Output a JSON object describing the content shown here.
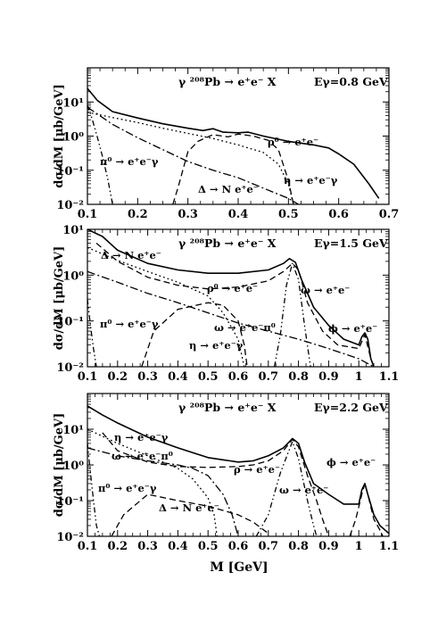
{
  "figure": {
    "xlabel": "M [GeV]"
  },
  "chart_data": [
    {
      "type": "line",
      "title": "γ ²⁰⁸Pb → e⁺e⁻ X",
      "energy_label": "Eγ=0.8 GeV",
      "xlabel": "",
      "ylabel": "dσ/dM [μb/GeV]",
      "xlim": [
        0.1,
        0.7
      ],
      "ylim": [
        0.01,
        100
      ],
      "yscale": "log",
      "xticks": [
        0.1,
        0.2,
        0.3,
        0.4,
        0.5,
        0.6,
        0.7
      ],
      "xtick_labels": [
        "0.1",
        "0.2",
        "0.3",
        "0.4",
        "0.5",
        "0.6",
        "0.7"
      ],
      "yticks": [
        0.01,
        0.1,
        1,
        10
      ],
      "ytick_labels": [
        "10⁻²",
        "10⁻¹",
        "10⁰",
        "10¹"
      ],
      "series": [
        {
          "style": "solid",
          "points": [
            [
              0.1,
              25
            ],
            [
              0.12,
              11
            ],
            [
              0.15,
              5.2
            ],
            [
              0.2,
              3.4
            ],
            [
              0.25,
              2.3
            ],
            [
              0.3,
              1.7
            ],
            [
              0.33,
              1.45
            ],
            [
              0.35,
              1.65
            ],
            [
              0.37,
              1.3
            ],
            [
              0.4,
              1.25
            ],
            [
              0.42,
              1.3
            ],
            [
              0.45,
              1.0
            ],
            [
              0.5,
              0.7
            ],
            [
              0.55,
              0.55
            ],
            [
              0.58,
              0.45
            ],
            [
              0.6,
              0.3
            ],
            [
              0.63,
              0.15
            ],
            [
              0.66,
              0.04
            ],
            [
              0.68,
              0.015
            ]
          ]
        },
        {
          "style": "dash",
          "points": [
            [
              0.27,
              0.01
            ],
            [
              0.28,
              0.03
            ],
            [
              0.3,
              0.35
            ],
            [
              0.32,
              0.7
            ],
            [
              0.35,
              1.1
            ],
            [
              0.38,
              0.95
            ],
            [
              0.4,
              1.15
            ],
            [
              0.43,
              1.0
            ],
            [
              0.46,
              0.75
            ],
            [
              0.48,
              0.4
            ],
            [
              0.5,
              0.05
            ],
            [
              0.51,
              0.01
            ]
          ]
        },
        {
          "style": "dot",
          "points": [
            [
              0.1,
              5
            ],
            [
              0.15,
              3.5
            ],
            [
              0.2,
              2.5
            ],
            [
              0.25,
              1.7
            ],
            [
              0.3,
              1.2
            ],
            [
              0.35,
              0.85
            ],
            [
              0.4,
              0.55
            ],
            [
              0.45,
              0.33
            ],
            [
              0.48,
              0.15
            ],
            [
              0.5,
              0.04
            ],
            [
              0.51,
              0.01
            ]
          ]
        },
        {
          "style": "dashdot",
          "points": [
            [
              0.1,
              7
            ],
            [
              0.15,
              2.2
            ],
            [
              0.2,
              0.9
            ],
            [
              0.25,
              0.4
            ],
            [
              0.3,
              0.18
            ],
            [
              0.35,
              0.1
            ],
            [
              0.4,
              0.06
            ],
            [
              0.45,
              0.03
            ],
            [
              0.5,
              0.015
            ],
            [
              0.52,
              0.01
            ]
          ]
        },
        {
          "style": "dashdotdot",
          "points": [
            [
              0.1,
              8
            ],
            [
              0.11,
              3
            ],
            [
              0.12,
              0.9
            ],
            [
              0.13,
              0.25
            ],
            [
              0.14,
              0.06
            ],
            [
              0.15,
              0.01
            ]
          ]
        }
      ],
      "annotations": [
        "ρ⁰ → e⁺e⁻",
        "π⁰ → e⁺e⁻γ",
        "η → e⁺e⁻γ",
        "Δ → N e⁺e⁻"
      ]
    },
    {
      "type": "line",
      "title": "γ ²⁰⁸Pb → e⁺e⁻ X",
      "energy_label": "Eγ=1.5 GeV",
      "xlabel": "",
      "ylabel": "dσ/dM [μb/GeV]",
      "xlim": [
        0.1,
        1.1
      ],
      "ylim": [
        0.01,
        10
      ],
      "yscale": "log",
      "xticks": [
        0.1,
        0.2,
        0.3,
        0.4,
        0.5,
        0.6,
        0.7,
        0.8,
        0.9,
        1.0,
        1.1
      ],
      "xtick_labels": [
        "0.1",
        "0.2",
        "0.3",
        "0.4",
        "0.5",
        "0.6",
        "0.7",
        "0.8",
        "0.9",
        "1",
        "1.1"
      ],
      "yticks": [
        0.01,
        0.1,
        1,
        10
      ],
      "ytick_labels": [
        "10⁻²",
        "10⁻¹",
        "10⁰",
        "10¹"
      ],
      "series": [
        {
          "style": "solid",
          "points": [
            [
              0.1,
              10
            ],
            [
              0.15,
              7
            ],
            [
              0.2,
              3.5
            ],
            [
              0.3,
              1.8
            ],
            [
              0.4,
              1.3
            ],
            [
              0.5,
              1.1
            ],
            [
              0.6,
              1.1
            ],
            [
              0.7,
              1.3
            ],
            [
              0.75,
              1.8
            ],
            [
              0.77,
              2.3
            ],
            [
              0.79,
              1.9
            ],
            [
              0.81,
              0.8
            ],
            [
              0.85,
              0.2
            ],
            [
              0.9,
              0.08
            ],
            [
              0.95,
              0.04
            ],
            [
              1.0,
              0.03
            ],
            [
              1.01,
              0.045
            ],
            [
              1.02,
              0.055
            ],
            [
              1.03,
              0.04
            ],
            [
              1.04,
              0.015
            ],
            [
              1.05,
              0.01
            ]
          ]
        },
        {
          "style": "dash",
          "points": [
            [
              0.13,
              5
            ],
            [
              0.2,
              2
            ],
            [
              0.3,
              0.9
            ],
            [
              0.4,
              0.6
            ],
            [
              0.5,
              0.5
            ],
            [
              0.6,
              0.55
            ],
            [
              0.7,
              0.75
            ],
            [
              0.75,
              1.2
            ],
            [
              0.78,
              1.8
            ],
            [
              0.8,
              1.3
            ],
            [
              0.83,
              0.25
            ],
            [
              0.88,
              0.06
            ],
            [
              0.93,
              0.03
            ],
            [
              1.0,
              0.025
            ],
            [
              1.02,
              0.05
            ],
            [
              1.04,
              0.015
            ],
            [
              1.05,
              0.01
            ]
          ]
        },
        {
          "style": "dot",
          "points": [
            [
              0.1,
              4
            ],
            [
              0.2,
              2.1
            ],
            [
              0.3,
              1.2
            ],
            [
              0.4,
              0.7
            ],
            [
              0.5,
              0.35
            ],
            [
              0.55,
              0.15
            ],
            [
              0.6,
              0.04
            ],
            [
              0.62,
              0.01
            ]
          ]
        },
        {
          "style": "dashdot",
          "points": [
            [
              0.1,
              1.2
            ],
            [
              0.2,
              0.7
            ],
            [
              0.3,
              0.4
            ],
            [
              0.4,
              0.25
            ],
            [
              0.5,
              0.15
            ],
            [
              0.6,
              0.09
            ],
            [
              0.7,
              0.06
            ],
            [
              0.8,
              0.04
            ],
            [
              0.9,
              0.025
            ],
            [
              1.0,
              0.015
            ],
            [
              1.05,
              0.01
            ]
          ]
        },
        {
          "style": "dashdotdot",
          "points": [
            [
              0.1,
              0.3
            ],
            [
              0.11,
              0.08
            ],
            [
              0.12,
              0.025
            ],
            [
              0.13,
              0.01
            ]
          ]
        },
        {
          "style": "dashdotdot",
          "points": [
            [
              0.72,
              0.01
            ],
            [
              0.74,
              0.05
            ],
            [
              0.76,
              0.6
            ],
            [
              0.78,
              1.8
            ],
            [
              0.8,
              0.8
            ],
            [
              0.82,
              0.08
            ],
            [
              0.84,
              0.01
            ]
          ]
        },
        {
          "style": "dash",
          "points": [
            [
              0.28,
              0.01
            ],
            [
              0.32,
              0.06
            ],
            [
              0.4,
              0.18
            ],
            [
              0.5,
              0.25
            ],
            [
              0.55,
              0.22
            ],
            [
              0.6,
              0.1
            ],
            [
              0.62,
              0.03
            ],
            [
              0.63,
              0.01
            ]
          ]
        }
      ],
      "annotations": [
        "Δ → N e⁺e⁻",
        "ρ⁰ → e⁺e⁻",
        "ω → e⁺e⁻",
        "π⁰ → e⁺e⁻γ",
        "ω → e⁺e⁻π⁰",
        "η → e⁺e⁻γ",
        "ϕ → e⁺e⁻"
      ]
    },
    {
      "type": "line",
      "title": "γ ²⁰⁸Pb → e⁺e⁻ X",
      "energy_label": "Eγ=2.2 GeV",
      "xlabel": "M [GeV]",
      "ylabel": "dσ/dM [μb/GeV]",
      "xlim": [
        0.1,
        1.1
      ],
      "ylim": [
        0.01,
        100
      ],
      "yscale": "log",
      "xticks": [
        0.1,
        0.2,
        0.3,
        0.4,
        0.5,
        0.6,
        0.7,
        0.8,
        0.9,
        1.0,
        1.1
      ],
      "xtick_labels": [
        "0.1",
        "0.2",
        "0.3",
        "0.4",
        "0.5",
        "0.6",
        "0.7",
        "0.8",
        "0.9",
        "1",
        "1.1"
      ],
      "yticks": [
        0.01,
        0.1,
        1,
        10
      ],
      "ytick_labels": [
        "10⁻²",
        "10⁻¹",
        "10⁰",
        "10¹"
      ],
      "series": [
        {
          "style": "solid",
          "points": [
            [
              0.1,
              45
            ],
            [
              0.15,
              25
            ],
            [
              0.2,
              15
            ],
            [
              0.3,
              6
            ],
            [
              0.4,
              3
            ],
            [
              0.5,
              1.6
            ],
            [
              0.6,
              1.2
            ],
            [
              0.65,
              1.3
            ],
            [
              0.7,
              1.8
            ],
            [
              0.75,
              3
            ],
            [
              0.78,
              5.5
            ],
            [
              0.8,
              4
            ],
            [
              0.82,
              1.2
            ],
            [
              0.85,
              0.3
            ],
            [
              0.9,
              0.15
            ],
            [
              0.95,
              0.08
            ],
            [
              1.0,
              0.08
            ],
            [
              1.01,
              0.2
            ],
            [
              1.02,
              0.3
            ],
            [
              1.03,
              0.15
            ],
            [
              1.05,
              0.04
            ],
            [
              1.07,
              0.02
            ],
            [
              1.1,
              0.012
            ]
          ]
        },
        {
          "style": "dash",
          "points": [
            [
              0.15,
              8
            ],
            [
              0.2,
              2.5
            ],
            [
              0.3,
              1.2
            ],
            [
              0.4,
              0.9
            ],
            [
              0.5,
              0.85
            ],
            [
              0.6,
              0.9
            ],
            [
              0.65,
              1.0
            ],
            [
              0.7,
              1.3
            ],
            [
              0.75,
              2.5
            ],
            [
              0.78,
              5.2
            ],
            [
              0.8,
              3.2
            ],
            [
              0.83,
              0.5
            ],
            [
              0.86,
              0.1
            ],
            [
              0.88,
              0.03
            ],
            [
              0.9,
              0.01
            ]
          ]
        },
        {
          "style": "dash",
          "points": [
            [
              0.97,
              0.01
            ],
            [
              0.99,
              0.03
            ],
            [
              1.01,
              0.15
            ],
            [
              1.02,
              0.3
            ],
            [
              1.03,
              0.15
            ],
            [
              1.05,
              0.03
            ],
            [
              1.07,
              0.015
            ],
            [
              1.08,
              0.01
            ]
          ]
        },
        {
          "style": "dot",
          "points": [
            [
              0.1,
              10
            ],
            [
              0.2,
              4
            ],
            [
              0.3,
              1.8
            ],
            [
              0.4,
              0.8
            ],
            [
              0.45,
              0.4
            ],
            [
              0.5,
              0.12
            ],
            [
              0.52,
              0.04
            ],
            [
              0.53,
              0.01
            ]
          ]
        },
        {
          "style": "dashdot",
          "points": [
            [
              0.1,
              3
            ],
            [
              0.2,
              1.8
            ],
            [
              0.3,
              1.3
            ],
            [
              0.4,
              1.0
            ],
            [
              0.45,
              0.8
            ],
            [
              0.5,
              0.5
            ],
            [
              0.55,
              0.15
            ],
            [
              0.58,
              0.04
            ],
            [
              0.6,
              0.01
            ]
          ]
        },
        {
          "style": "dashdotdot",
          "points": [
            [
              0.1,
              4
            ],
            [
              0.11,
              0.6
            ],
            [
              0.12,
              0.1
            ],
            [
              0.13,
              0.02
            ],
            [
              0.14,
              0.01
            ]
          ]
        },
        {
          "style": "dashdotdot",
          "points": [
            [
              0.66,
              0.01
            ],
            [
              0.7,
              0.04
            ],
            [
              0.74,
              0.6
            ],
            [
              0.78,
              4.5
            ],
            [
              0.8,
              1.5
            ],
            [
              0.83,
              0.1
            ],
            [
              0.85,
              0.02
            ],
            [
              0.86,
              0.01
            ]
          ]
        },
        {
          "style": "dash",
          "points": [
            [
              0.18,
              0.01
            ],
            [
              0.22,
              0.04
            ],
            [
              0.3,
              0.15
            ],
            [
              0.4,
              0.1
            ],
            [
              0.5,
              0.07
            ],
            [
              0.6,
              0.04
            ],
            [
              0.65,
              0.025
            ],
            [
              0.7,
              0.012
            ]
          ]
        }
      ],
      "annotations": [
        "η → e⁺e⁻γ",
        "ω → e⁺e⁻π⁰",
        "π⁰ → e⁺e⁻γ",
        "ρ → e⁺e⁻",
        "ω → e⁺e⁻",
        "Δ → N e⁺e⁻",
        "ϕ → e⁺e⁻"
      ]
    }
  ]
}
